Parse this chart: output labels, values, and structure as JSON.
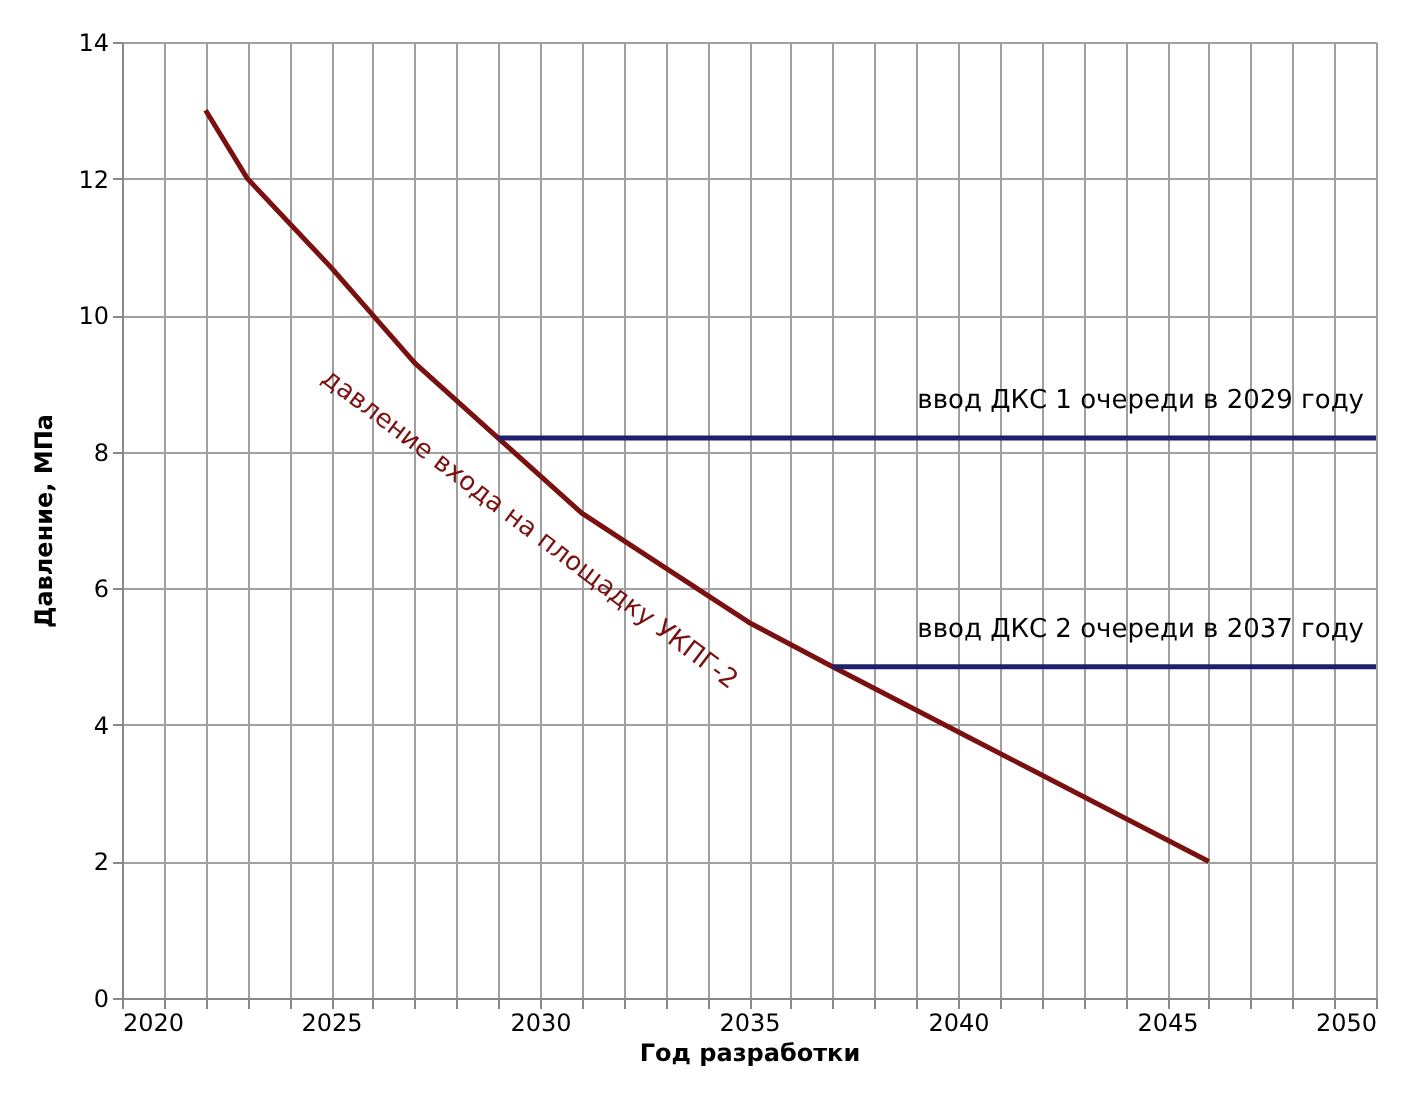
{
  "chart_data": {
    "type": "line",
    "xlabel": "Год разработки",
    "ylabel": "Давление, МПа",
    "xlim": [
      2020,
      2050
    ],
    "ylim": [
      0,
      14
    ],
    "xticks": [
      2020,
      {
        "value": 2021,
        "label": null
      },
      {
        "value": 2022,
        "label": null
      },
      {
        "value": 2023,
        "label": null
      },
      {
        "value": 2024,
        "label": null
      },
      2025,
      {
        "value": 2026,
        "label": null
      },
      {
        "value": 2027,
        "label": null
      },
      {
        "value": 2028,
        "label": null
      },
      {
        "value": 2029,
        "label": null
      },
      2030,
      {
        "value": 2031,
        "label": null
      },
      {
        "value": 2032,
        "label": null
      },
      {
        "value": 2033,
        "label": null
      },
      {
        "value": 2034,
        "label": null
      },
      2035,
      {
        "value": 2036,
        "label": null
      },
      {
        "value": 2037,
        "label": null
      },
      {
        "value": 2038,
        "label": null
      },
      {
        "value": 2039,
        "label": null
      },
      2040,
      {
        "value": 2041,
        "label": null
      },
      {
        "value": 2042,
        "label": null
      },
      {
        "value": 2043,
        "label": null
      },
      {
        "value": 2044,
        "label": null
      },
      2045,
      {
        "value": 2046,
        "label": null
      },
      {
        "value": 2047,
        "label": null
      },
      {
        "value": 2048,
        "label": null
      },
      {
        "value": 2049,
        "label": null
      },
      2050
    ],
    "yticks": [
      0,
      2,
      4,
      6,
      8,
      10,
      12,
      14
    ],
    "grid": true,
    "legend": false,
    "series": [
      {
        "name": "давление входа на площадку УКПГ-2",
        "color": "#7b1010",
        "x": [
          2022,
          2023,
          2025,
          2027,
          2029,
          2031,
          2033,
          2035,
          2037,
          2040,
          2046
        ],
        "values": [
          13,
          12,
          10.7,
          9.3,
          8.2,
          7.1,
          6.3,
          5.5,
          4.85,
          3.9,
          2.0
        ]
      },
      {
        "name": "ввод ДКС 1 очереди в 2029 году",
        "color": "#1f1f6e",
        "x": [
          2029,
          2050
        ],
        "values": [
          8.2,
          8.2
        ]
      },
      {
        "name": "ввод ДКС 2 очереди в 2037 году",
        "color": "#1f1f6e",
        "x": [
          2037,
          2050
        ],
        "values": [
          4.85,
          4.85
        ]
      }
    ]
  }
}
